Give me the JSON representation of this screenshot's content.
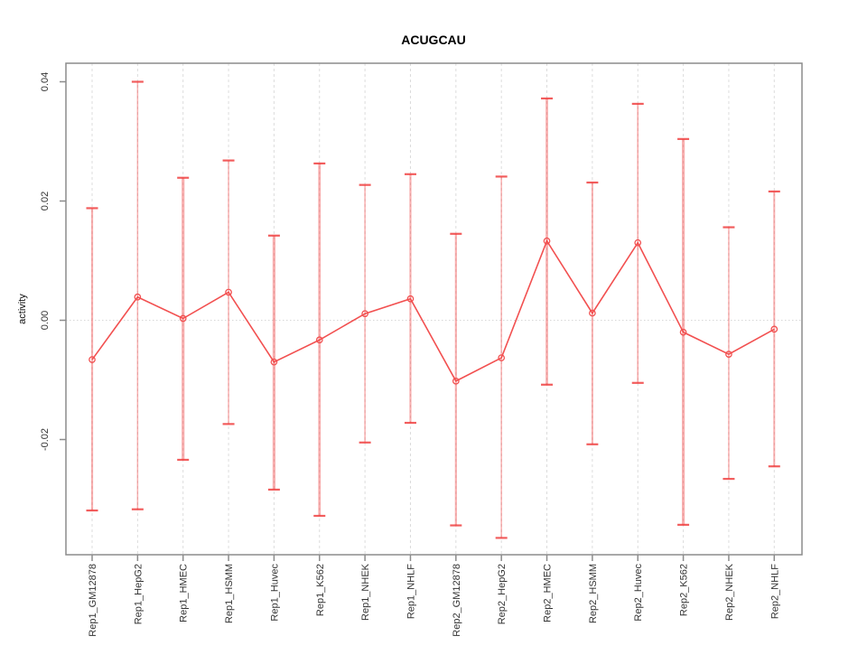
{
  "chart_data": {
    "type": "line",
    "title": "ACUGCAU",
    "ylabel": "activity",
    "xlabel": "",
    "categories": [
      "Rep1_GM12878",
      "Rep1_HepG2",
      "Rep1_HMEC",
      "Rep1_HSMM",
      "Rep1_Huvec",
      "Rep1_K562",
      "Rep1_NHEK",
      "Rep1_NHLF",
      "Rep2_GM12878",
      "Rep2_HepG2",
      "Rep2_HMEC",
      "Rep2_HSMM",
      "Rep2_Huvec",
      "Rep2_K562",
      "Rep2_NHEK",
      "Rep2_NHLF"
    ],
    "series": [
      {
        "name": "activity",
        "values": [
          -0.0066,
          0.0039,
          0.0003,
          0.0047,
          -0.007,
          -0.0033,
          0.0011,
          0.0036,
          -0.0102,
          -0.0063,
          0.0133,
          0.0012,
          0.013,
          -0.002,
          -0.0057,
          -0.0015
        ],
        "upper": [
          0.0188,
          0.04,
          0.0239,
          0.0268,
          0.0142,
          0.0263,
          0.0227,
          0.0245,
          0.0145,
          0.0241,
          0.0372,
          0.0231,
          0.0363,
          0.0304,
          0.0156,
          0.0216
        ],
        "lower": [
          -0.0319,
          -0.0317,
          -0.0234,
          -0.0174,
          -0.0284,
          -0.0328,
          -0.0205,
          -0.0172,
          -0.0344,
          -0.0365,
          -0.0108,
          -0.0208,
          -0.0105,
          -0.0343,
          -0.0266,
          -0.0245
        ]
      }
    ],
    "yticks": [
      {
        "value": -0.02,
        "label": "-0.02"
      },
      {
        "value": 0.0,
        "label": "0.00"
      },
      {
        "value": 0.02,
        "label": "0.02"
      },
      {
        "value": 0.04,
        "label": "0.04"
      }
    ],
    "ylim": [
      -0.0396,
      0.0431
    ],
    "grid": {
      "vertical": "dashed at each category",
      "horizontal": "dotted at y=0 only"
    },
    "legend": "none",
    "marker": "open-circle",
    "stem_widths": [
      2.2,
      1.5,
      3.2,
      1.5,
      3.2,
      2.8,
      1.5,
      2.2,
      2.2,
      1.5,
      2.8,
      2.0,
      1.7,
      3.2,
      1.5,
      2.0
    ],
    "colors": {
      "line": "#f25050",
      "marker": "#f25050",
      "error_stem": "rgba(242,80,80,0.45)",
      "error_cap": "rgba(240,65,65,0.85)",
      "frame": "#8c8c8c",
      "grid_vertical": "#dcdcdc",
      "grid_zero": "#d8d8d8",
      "tick_text": "#333333",
      "title_text": "#000000",
      "background": "#ffffff"
    }
  }
}
